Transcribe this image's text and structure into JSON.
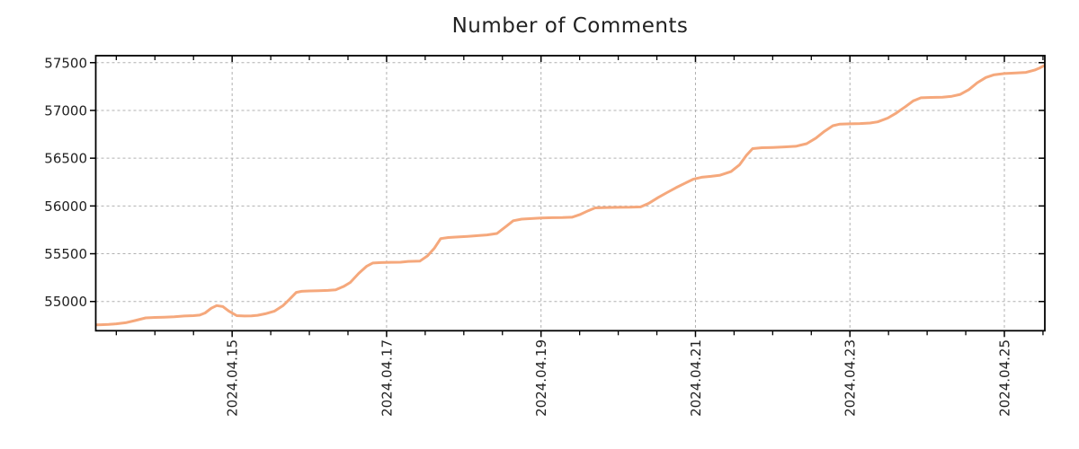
{
  "page": {
    "background": "#ffffff"
  },
  "chart_data": {
    "type": "line",
    "title": "Number of Comments",
    "series_name": "number-of-comments",
    "x_unit": "date shown as 2024.04.DD, x stored as decimal day of April 2024",
    "x": [
      13.234,
      13.3,
      13.4,
      13.5,
      13.62,
      13.74,
      13.88,
      14.0,
      14.12,
      14.25,
      14.38,
      14.5,
      14.58,
      14.65,
      14.73,
      14.8,
      14.88,
      14.96,
      15.06,
      15.16,
      15.25,
      15.33,
      15.43,
      15.55,
      15.66,
      15.74,
      15.83,
      15.9,
      16.0,
      16.12,
      16.24,
      16.34,
      16.45,
      16.53,
      16.64,
      16.74,
      16.82,
      16.93,
      17.06,
      17.18,
      17.28,
      17.43,
      17.53,
      17.62,
      17.7,
      17.8,
      17.92,
      18.05,
      18.2,
      18.3,
      18.43,
      18.55,
      18.64,
      18.75,
      18.9,
      19.0,
      19.15,
      19.28,
      19.4,
      19.5,
      19.61,
      19.7,
      19.85,
      20.0,
      20.15,
      20.29,
      20.4,
      20.52,
      20.63,
      20.75,
      20.87,
      20.97,
      21.08,
      21.2,
      21.32,
      21.46,
      21.57,
      21.66,
      21.74,
      21.86,
      22.0,
      22.15,
      22.3,
      22.44,
      22.56,
      22.67,
      22.78,
      22.87,
      23.0,
      23.13,
      23.26,
      23.36,
      23.49,
      23.6,
      23.72,
      23.82,
      23.92,
      24.05,
      24.2,
      24.32,
      24.43,
      24.54,
      24.65,
      24.76,
      24.86,
      25.0,
      25.15,
      25.28,
      25.39,
      25.46,
      25.524
    ],
    "y": [
      54755,
      54757,
      54760,
      54766,
      54778,
      54800,
      54828,
      54833,
      54836,
      54840,
      54848,
      54852,
      54858,
      54880,
      54930,
      54957,
      54947,
      54898,
      54852,
      54848,
      54849,
      54856,
      54872,
      54900,
      54958,
      55020,
      55095,
      55107,
      55110,
      55112,
      55116,
      55122,
      55160,
      55200,
      55295,
      55368,
      55403,
      55407,
      55410,
      55411,
      55420,
      55422,
      55478,
      55560,
      55658,
      55670,
      55675,
      55682,
      55690,
      55697,
      55712,
      55788,
      55845,
      55862,
      55870,
      55874,
      55877,
      55878,
      55882,
      55908,
      55950,
      55980,
      55984,
      55985,
      55986,
      55990,
      56030,
      56090,
      56140,
      56192,
      56240,
      56280,
      56300,
      56310,
      56322,
      56360,
      56430,
      56530,
      56600,
      56610,
      56612,
      56618,
      56625,
      56652,
      56710,
      56782,
      56840,
      56857,
      56860,
      56862,
      56868,
      56880,
      56920,
      56972,
      57040,
      57100,
      57132,
      57136,
      57139,
      57148,
      57168,
      57218,
      57290,
      57345,
      57372,
      57386,
      57392,
      57398,
      57422,
      57445,
      57472
    ],
    "xlim": [
      13.234,
      25.524
    ],
    "ylim": [
      54694,
      57573
    ],
    "x_major_ticks": [
      15,
      17,
      19,
      21,
      23,
      25
    ],
    "x_major_labels": [
      "2024.04.15",
      "2024.04.17",
      "2024.04.19",
      "2024.04.21",
      "2024.04.23",
      "2024.04.25"
    ],
    "x_minor_tick_start": 13.5,
    "x_minor_tick_step": 0.5,
    "x_minor_tick_end": 25.5,
    "y_ticks": [
      55000,
      55500,
      56000,
      56500,
      57000,
      57500
    ],
    "y_tick_labels": [
      "55000",
      "55500",
      "56000",
      "56500",
      "57000",
      "57500"
    ],
    "grid": true,
    "grid_style": "dashed",
    "legend_position": "none",
    "line_color": "#f5a87c",
    "grid_color": "#b0b0b0",
    "axis_color": "#000000",
    "text_color": "#222222"
  }
}
